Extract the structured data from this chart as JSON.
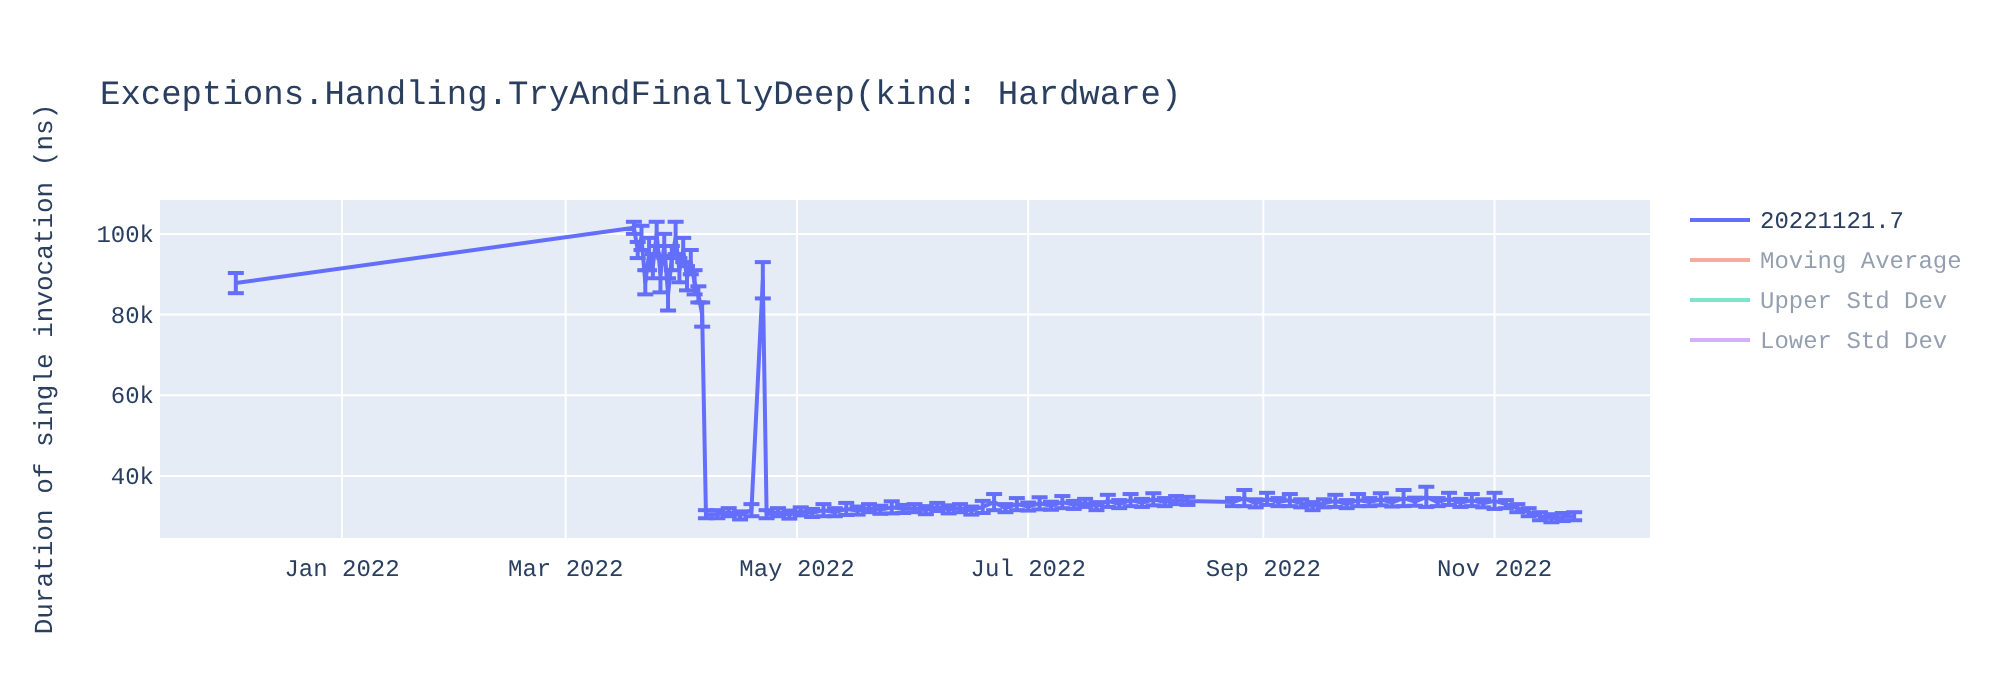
{
  "chart_data": {
    "type": "line",
    "title": "Exceptions.Handling.TryAndFinallyDeep(kind: Hardware)",
    "ylabel": "Duration of single invocation (ns)",
    "xlim": [
      "2021-11-14",
      "2022-12-12"
    ],
    "xticks": [
      {
        "value": "2022-01-01",
        "label": "Jan 2022"
      },
      {
        "value": "2022-03-01",
        "label": "Mar 2022"
      },
      {
        "value": "2022-05-01",
        "label": "May 2022"
      },
      {
        "value": "2022-07-01",
        "label": "Jul 2022"
      },
      {
        "value": "2022-09-01",
        "label": "Sep 2022"
      },
      {
        "value": "2022-11-01",
        "label": "Nov 2022"
      }
    ],
    "ylim": [
      24600,
      108400
    ],
    "yticks": [
      {
        "value": 40000,
        "label": "40k"
      },
      {
        "value": 60000,
        "label": "60k"
      },
      {
        "value": 80000,
        "label": "80k"
      },
      {
        "value": 100000,
        "label": "100k"
      }
    ],
    "grid": true,
    "legend": "top right",
    "marker": "none",
    "line_style": "solid",
    "series": [
      {
        "name": "20221121.7",
        "color": "#636efa",
        "x": [
          "2021-12-04",
          "2022-03-19",
          "2022-03-20",
          "2022-03-21",
          "2022-03-22",
          "2022-03-23",
          "2022-03-24",
          "2022-03-25",
          "2022-03-26",
          "2022-03-27",
          "2022-03-28",
          "2022-03-29",
          "2022-03-30",
          "2022-03-31",
          "2022-04-01",
          "2022-04-02",
          "2022-04-03",
          "2022-04-04",
          "2022-04-05",
          "2022-04-06",
          "2022-04-07",
          "2022-04-10",
          "2022-04-13",
          "2022-04-16",
          "2022-04-19",
          "2022-04-22",
          "2022-04-23",
          "2022-04-26",
          "2022-04-29",
          "2022-05-02",
          "2022-05-05",
          "2022-05-08",
          "2022-05-11",
          "2022-05-14",
          "2022-05-17",
          "2022-05-20",
          "2022-05-23",
          "2022-05-26",
          "2022-05-29",
          "2022-06-01",
          "2022-06-04",
          "2022-06-07",
          "2022-06-10",
          "2022-06-13",
          "2022-06-16",
          "2022-06-19",
          "2022-06-22",
          "2022-06-25",
          "2022-06-28",
          "2022-07-01",
          "2022-07-04",
          "2022-07-07",
          "2022-07-10",
          "2022-07-13",
          "2022-07-16",
          "2022-07-19",
          "2022-07-22",
          "2022-07-25",
          "2022-07-28",
          "2022-07-31",
          "2022-08-03",
          "2022-08-06",
          "2022-08-09",
          "2022-08-12",
          "2022-08-24",
          "2022-08-27",
          "2022-08-30",
          "2022-09-02",
          "2022-09-05",
          "2022-09-08",
          "2022-09-11",
          "2022-09-14",
          "2022-09-17",
          "2022-09-20",
          "2022-09-23",
          "2022-09-26",
          "2022-09-29",
          "2022-10-02",
          "2022-10-05",
          "2022-10-08",
          "2022-10-11",
          "2022-10-14",
          "2022-10-17",
          "2022-10-20",
          "2022-10-23",
          "2022-10-26",
          "2022-10-29",
          "2022-11-01",
          "2022-11-04",
          "2022-11-07",
          "2022-11-10",
          "2022-11-13",
          "2022-11-16",
          "2022-11-19",
          "2022-11-22"
        ],
        "values": [
          87800,
          101500,
          96000,
          99000,
          88000,
          95000,
          92000,
          100000,
          90000,
          97000,
          85000,
          94000,
          99000,
          91000,
          96000,
          89000,
          93000,
          88000,
          85000,
          80000,
          30500,
          30500,
          31000,
          30200,
          31500,
          88500,
          30500,
          31000,
          30400,
          31200,
          30800,
          31500,
          31000,
          31800,
          31400,
          32000,
          31600,
          32200,
          31800,
          32000,
          31500,
          32300,
          31700,
          32000,
          31400,
          32300,
          33500,
          32000,
          33000,
          32400,
          33200,
          32600,
          33500,
          32800,
          33300,
          32500,
          33800,
          33000,
          34000,
          33300,
          34200,
          33500,
          34000,
          33800,
          33500,
          34500,
          33200,
          34300,
          33500,
          34000,
          33200,
          32500,
          33200,
          33800,
          33000,
          34000,
          33500,
          34200,
          33400,
          34500,
          33600,
          34800,
          33500,
          34300,
          33300,
          34000,
          33200,
          33800,
          33000,
          32000,
          31000,
          30000,
          29500,
          29800,
          30000
        ],
        "errors": [
          2500,
          1500,
          2000,
          3000,
          3000,
          4000,
          3000,
          3000,
          4500,
          3000,
          4000,
          3000,
          4000,
          3000,
          3000,
          3000,
          3000,
          3000,
          2000,
          3000,
          1000,
          1000,
          1000,
          1000,
          1500,
          4500,
          1000,
          1000,
          1000,
          1000,
          1000,
          1500,
          1000,
          1500,
          1000,
          1000,
          1000,
          1500,
          1000,
          1000,
          1000,
          1000,
          1000,
          1000,
          1000,
          1500,
          2000,
          1000,
          1500,
          1000,
          1500,
          1000,
          1500,
          1000,
          1000,
          1000,
          1500,
          1000,
          1500,
          1000,
          1500,
          1000,
          1000,
          1000,
          1000,
          2000,
          1000,
          1500,
          1000,
          1500,
          1000,
          1000,
          1000,
          1500,
          1000,
          1500,
          1000,
          1500,
          1000,
          2000,
          1000,
          2500,
          1000,
          1500,
          1000,
          1500,
          1000,
          2000,
          1000,
          1000,
          1000,
          1000,
          1000,
          1000,
          1000
        ]
      },
      {
        "name": "Moving Average",
        "color": "#ef553b"
      },
      {
        "name": "Upper Std Dev",
        "color": "#00cc96"
      },
      {
        "name": "Lower Std Dev",
        "color": "#ab63fa"
      }
    ]
  }
}
